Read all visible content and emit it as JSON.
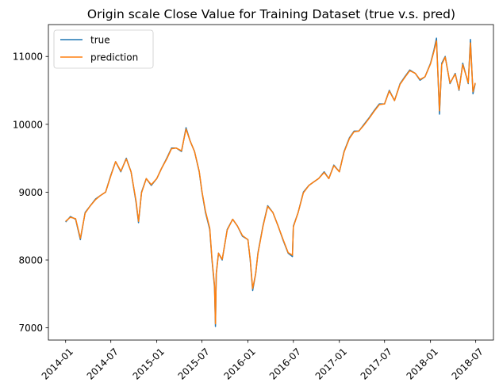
{
  "chart_data": {
    "type": "line",
    "title": "Origin scale Close Value for Training Dataset (true v.s. pred)",
    "xlabel": "",
    "ylabel": "",
    "x_ticks": [
      "2014-01",
      "2014-07",
      "2015-01",
      "2015-07",
      "2016-01",
      "2016-07",
      "2017-01",
      "2017-07",
      "2018-01",
      "2018-07"
    ],
    "y_ticks": [
      7000,
      8000,
      9000,
      10000,
      11000
    ],
    "xlim": [
      "2013-10-24",
      "2018-09-10"
    ],
    "ylim": [
      6820,
      11470
    ],
    "grid": false,
    "legend_position": "upper-left",
    "x": [
      "2014-01-01",
      "2014-01-20",
      "2014-02-10",
      "2014-03-01",
      "2014-03-20",
      "2014-04-10",
      "2014-05-01",
      "2014-05-20",
      "2014-06-10",
      "2014-07-01",
      "2014-07-20",
      "2014-08-10",
      "2014-09-01",
      "2014-09-20",
      "2014-10-10",
      "2014-10-20",
      "2014-11-01",
      "2014-11-20",
      "2014-12-10",
      "2015-01-01",
      "2015-01-20",
      "2015-02-10",
      "2015-03-01",
      "2015-03-20",
      "2015-04-10",
      "2015-04-28",
      "2015-05-15",
      "2015-06-01",
      "2015-06-20",
      "2015-07-01",
      "2015-07-15",
      "2015-08-01",
      "2015-08-10",
      "2015-08-20",
      "2015-08-24",
      "2015-08-27",
      "2015-09-05",
      "2015-09-20",
      "2015-10-10",
      "2015-11-01",
      "2015-11-20",
      "2015-12-10",
      "2016-01-01",
      "2016-01-10",
      "2016-01-20",
      "2016-02-01",
      "2016-02-10",
      "2016-03-01",
      "2016-03-20",
      "2016-04-10",
      "2016-05-01",
      "2016-05-20",
      "2016-06-10",
      "2016-06-27",
      "2016-07-01",
      "2016-07-20",
      "2016-08-10",
      "2016-09-01",
      "2016-09-20",
      "2016-10-10",
      "2016-11-01",
      "2016-11-20",
      "2016-12-10",
      "2017-01-01",
      "2017-01-20",
      "2017-02-10",
      "2017-03-01",
      "2017-03-20",
      "2017-04-10",
      "2017-05-01",
      "2017-05-20",
      "2017-06-10",
      "2017-07-01",
      "2017-07-20",
      "2017-08-10",
      "2017-09-01",
      "2017-09-20",
      "2017-10-10",
      "2017-11-01",
      "2017-11-20",
      "2017-12-10",
      "2018-01-01",
      "2018-01-15",
      "2018-01-25",
      "2018-02-06",
      "2018-02-15",
      "2018-03-01",
      "2018-03-20",
      "2018-04-10",
      "2018-04-25",
      "2018-05-10",
      "2018-05-25",
      "2018-06-01",
      "2018-06-10",
      "2018-06-20",
      "2018-06-29"
    ],
    "series": [
      {
        "name": "true",
        "color": "#1f77b4",
        "values": [
          8560,
          8640,
          8600,
          8300,
          8700,
          8800,
          8900,
          8950,
          9000,
          9250,
          9450,
          9300,
          9500,
          9300,
          8850,
          8550,
          9000,
          9200,
          9100,
          9200,
          9350,
          9500,
          9650,
          9650,
          9600,
          9950,
          9750,
          9600,
          9300,
          9000,
          8700,
          8450,
          8000,
          7600,
          7020,
          7800,
          8100,
          8000,
          8450,
          8600,
          8500,
          8350,
          8300,
          8000,
          7550,
          7800,
          8100,
          8500,
          8800,
          8700,
          8500,
          8300,
          8100,
          8050,
          8500,
          8700,
          9000,
          9100,
          9150,
          9200,
          9300,
          9200,
          9400,
          9300,
          9600,
          9800,
          9900,
          9900,
          10000,
          10100,
          10200,
          10300,
          10300,
          10500,
          10350,
          10600,
          10700,
          10800,
          10750,
          10650,
          10700,
          10900,
          11100,
          11270,
          10150,
          10900,
          11000,
          10600,
          10750,
          10500,
          10900,
          10700,
          10600,
          11250,
          10450,
          10600
        ]
      },
      {
        "name": "prediction",
        "color": "#ff7f0e",
        "values": [
          8570,
          8630,
          8610,
          8320,
          8690,
          8800,
          8890,
          8950,
          9000,
          9240,
          9450,
          9310,
          9490,
          9300,
          8870,
          8570,
          8990,
          9200,
          9110,
          9200,
          9350,
          9490,
          9640,
          9650,
          9610,
          9930,
          9750,
          9600,
          9310,
          9010,
          8720,
          8470,
          8020,
          7630,
          7060,
          7790,
          8100,
          8010,
          8440,
          8600,
          8500,
          8360,
          8300,
          8010,
          7580,
          7800,
          8090,
          8490,
          8790,
          8700,
          8500,
          8310,
          8110,
          8070,
          8490,
          8700,
          8990,
          9100,
          9150,
          9200,
          9290,
          9200,
          9390,
          9300,
          9590,
          9790,
          9890,
          9900,
          9990,
          10090,
          10190,
          10290,
          10300,
          10490,
          10350,
          10590,
          10690,
          10790,
          10750,
          10660,
          10700,
          10890,
          11080,
          11230,
          10200,
          10880,
          10990,
          10610,
          10740,
          10510,
          10880,
          10700,
          10610,
          11200,
          10480,
          10610
        ]
      }
    ]
  }
}
